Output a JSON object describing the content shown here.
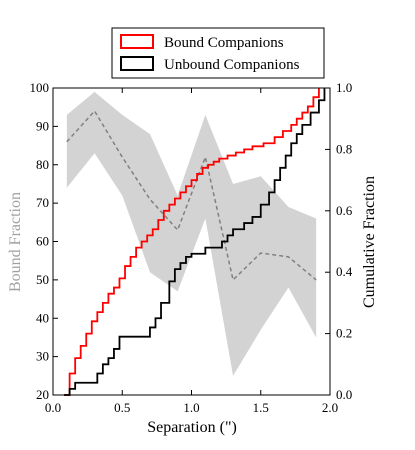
{
  "chart_data": {
    "type": "line",
    "xlabel": "Separation (\")",
    "ylabel_left": "Bound Fraction",
    "ylabel_right": "Cumulative Fraction",
    "xlim": [
      0.0,
      2.0
    ],
    "ylim_left": [
      20,
      100
    ],
    "ylim_right": [
      0.0,
      1.0
    ],
    "xticks": [
      "0.0",
      "0.5",
      "1.0",
      "1.5",
      "2.0"
    ],
    "yticks_left": [
      "20",
      "30",
      "40",
      "50",
      "60",
      "70",
      "80",
      "90",
      "100"
    ],
    "yticks_right": [
      "0.0",
      "0.2",
      "0.4",
      "0.6",
      "0.8",
      "1.0"
    ],
    "grid": false,
    "legend_position": "top-center, above plot",
    "bound_fraction": {
      "color": "#808080",
      "style": "dashed",
      "x": [
        0.1,
        0.3,
        0.5,
        0.7,
        0.9,
        1.1,
        1.3,
        1.5,
        1.7,
        1.9
      ],
      "mean": [
        86,
        94,
        82,
        71,
        63,
        82,
        50,
        57,
        56,
        50
      ],
      "band_color": "#d3d3d3",
      "upper": [
        93,
        99,
        93,
        88,
        72,
        93,
        75,
        77,
        69,
        66
      ],
      "lower": [
        74,
        83,
        72,
        52,
        47,
        66,
        25,
        37,
        48,
        35
      ]
    },
    "series": [
      {
        "name": "Bound Companions",
        "color": "#ff0000",
        "style": "step",
        "x": [
          0.08,
          0.12,
          0.16,
          0.2,
          0.24,
          0.28,
          0.32,
          0.36,
          0.4,
          0.44,
          0.48,
          0.52,
          0.56,
          0.6,
          0.64,
          0.68,
          0.72,
          0.76,
          0.8,
          0.84,
          0.88,
          0.92,
          0.96,
          1.0,
          1.04,
          1.08,
          1.12,
          1.16,
          1.2,
          1.26,
          1.32,
          1.38,
          1.44,
          1.52,
          1.6,
          1.66,
          1.72,
          1.76,
          1.8,
          1.84,
          1.88,
          1.92
        ],
        "y": [
          0.0,
          0.07,
          0.12,
          0.16,
          0.2,
          0.24,
          0.27,
          0.3,
          0.33,
          0.35,
          0.38,
          0.42,
          0.45,
          0.48,
          0.5,
          0.52,
          0.54,
          0.57,
          0.6,
          0.62,
          0.64,
          0.66,
          0.68,
          0.7,
          0.72,
          0.74,
          0.75,
          0.76,
          0.77,
          0.78,
          0.79,
          0.8,
          0.81,
          0.82,
          0.84,
          0.86,
          0.88,
          0.9,
          0.92,
          0.94,
          0.97,
          1.0
        ]
      },
      {
        "name": "Unbound Companions",
        "color": "#000000",
        "style": "step",
        "x": [
          0.08,
          0.12,
          0.16,
          0.32,
          0.36,
          0.4,
          0.44,
          0.48,
          0.7,
          0.74,
          0.78,
          0.84,
          0.88,
          0.92,
          0.96,
          1.0,
          1.1,
          1.22,
          1.26,
          1.3,
          1.38,
          1.44,
          1.5,
          1.56,
          1.6,
          1.64,
          1.68,
          1.72,
          1.76,
          1.8,
          1.86,
          1.92,
          1.96
        ],
        "y": [
          0.0,
          0.02,
          0.04,
          0.07,
          0.1,
          0.12,
          0.15,
          0.19,
          0.22,
          0.25,
          0.3,
          0.37,
          0.41,
          0.43,
          0.45,
          0.46,
          0.48,
          0.5,
          0.52,
          0.54,
          0.56,
          0.58,
          0.62,
          0.66,
          0.7,
          0.74,
          0.78,
          0.82,
          0.85,
          0.88,
          0.92,
          0.96,
          1.0
        ]
      }
    ]
  }
}
